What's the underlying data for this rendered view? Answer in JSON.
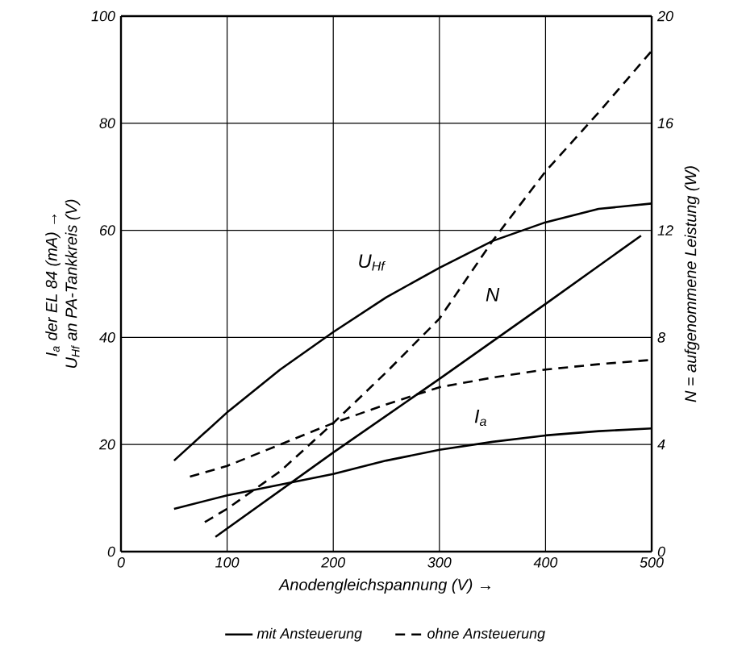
{
  "chart_data": {
    "type": "line",
    "xlabel": "Anodengleichspannung (V) →",
    "ylabel": [
      "I$_{a}$ der EL 84 (mA) →",
      "U$_{Hf}$ an PA-Tankkreis (V)"
    ],
    "y2label": "N = aufgenommene Leistung (W)",
    "xlim": [
      0,
      500
    ],
    "xticks": [
      0,
      100,
      200,
      300,
      400,
      500
    ],
    "ylim": [
      0,
      100
    ],
    "yticks": [
      0,
      20,
      40,
      60,
      80,
      100
    ],
    "y2lim": [
      0,
      20
    ],
    "y2ticks": [
      0,
      4,
      8,
      12,
      16,
      20
    ],
    "grid": true,
    "legend": "bottom",
    "marker": "none",
    "series": [
      {
        "name": "mit Ansteuerung",
        "color": "#000000",
        "line_style": "solid",
        "x": [
          50,
          100,
          150,
          200,
          250,
          300,
          350,
          400,
          450,
          500
        ],
        "values": [
          8,
          10.5,
          12.5,
          14.5,
          17,
          19,
          20.5,
          21.7,
          22.5,
          23
        ]
      },
      {
        "name": "ohne Ansteuerung",
        "color": "#000000",
        "line_style": "dashed",
        "x": [
          65,
          100,
          150,
          200,
          250,
          300,
          350,
          400,
          450,
          500
        ],
        "values": [
          14,
          16,
          20,
          24,
          27.5,
          30.7,
          32.5,
          34,
          35,
          35.8
        ]
      },
      {
        "color": "#000000",
        "line_style": "solid",
        "x": [
          50,
          100,
          150,
          200,
          250,
          300,
          350,
          400,
          450,
          500
        ],
        "values": [
          17,
          26,
          34,
          41,
          47.5,
          53,
          58,
          61.5,
          64,
          65
        ]
      },
      {
        "color": "#000000",
        "line_style": "solid",
        "axis": "y2",
        "x": [
          89,
          200,
          300,
          400,
          490
        ],
        "values": [
          0.55,
          3.7,
          6.45,
          9.25,
          11.8
        ]
      },
      {
        "color": "#000000",
        "line_style": "dashed",
        "axis": "y2",
        "x": [
          79,
          100,
          150,
          200,
          250,
          300,
          350,
          400,
          450,
          500
        ],
        "values": [
          1.1,
          1.6,
          3.0,
          4.8,
          6.7,
          8.7,
          11.6,
          14.2,
          16.4,
          18.7
        ]
      }
    ],
    "annotations": [
      {
        "text": "U$_{Hf}$",
        "x": 236,
        "y": 54
      },
      {
        "text": "N",
        "x": 350,
        "y": 48
      },
      {
        "text": "I$_{a}$",
        "x": 339,
        "y": 25
      }
    ]
  }
}
